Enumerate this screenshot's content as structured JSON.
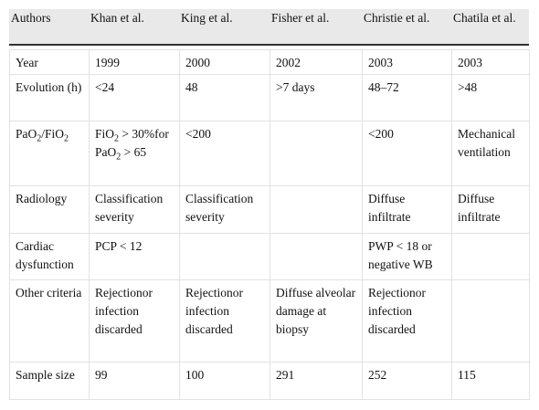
{
  "table": {
    "header": [
      "Authors",
      "Khan et al.",
      "King et al.",
      "Fisher et al.",
      "Christie et al.",
      "Chatila et al."
    ],
    "rows": [
      [
        "Year",
        "1999",
        "2000",
        "2002",
        "2003",
        "2003"
      ],
      [
        "Evolution (h)",
        "<24",
        "48",
        ">7 days",
        "48–72",
        ">48"
      ],
      [
        "PaO2/FiO2",
        "FiO2 > 30%for PaO2 > 65",
        "<200",
        null,
        "<200",
        "Mechanical ventilation"
      ],
      [
        "Radiology",
        "Classification severity",
        "Classification severity",
        null,
        "Diffuse infiltrate",
        "Diffuse infiltrate"
      ],
      [
        "Cardiac dysfunction",
        "PCP < 12",
        null,
        null,
        "PWP < 18 or negative WB",
        null
      ],
      [
        "Other criteria",
        "Rejectionor infection discarded",
        "Rejectionor infection discarded",
        "Diffuse alveolar damage at biopsy",
        "Rejectionor infection discarded",
        null
      ],
      [
        "Sample size",
        "99",
        "100",
        "291",
        "252",
        "115"
      ]
    ]
  }
}
